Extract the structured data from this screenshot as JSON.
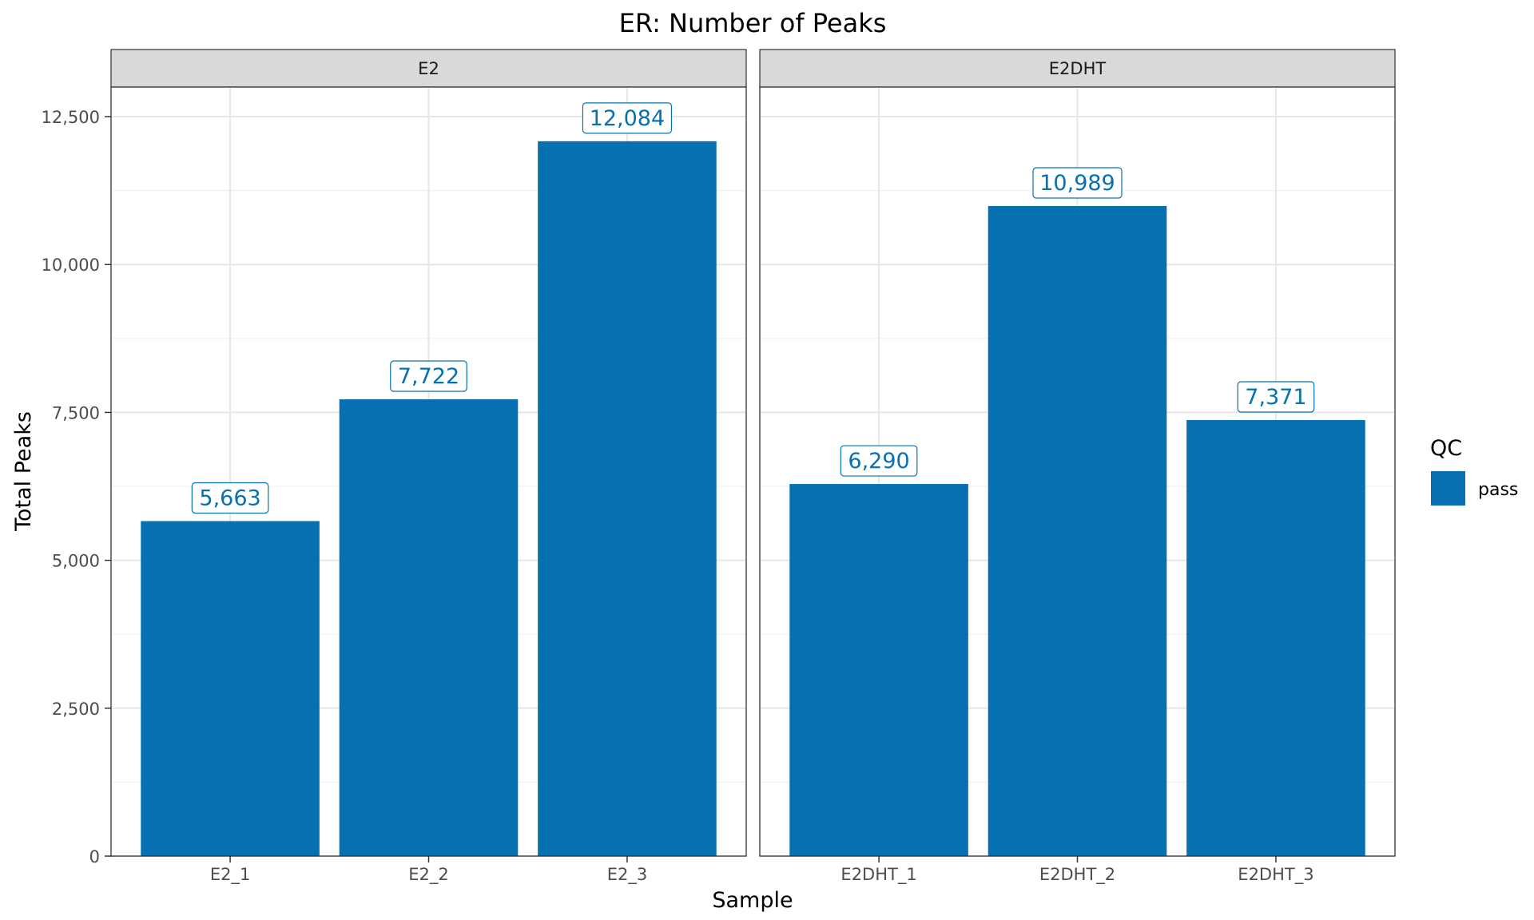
{
  "chart_data": {
    "type": "bar",
    "title": "ER: Number of Peaks",
    "xlabel": "Sample",
    "ylabel": "Total Peaks",
    "ylim": [
      0,
      13000
    ],
    "yticks": [
      0,
      2500,
      5000,
      7500,
      10000,
      12500
    ],
    "ytick_labels": [
      "0",
      "2,500",
      "5,000",
      "7,500",
      "10,000",
      "12,500"
    ],
    "grid": true,
    "bar_color": "#0770B0",
    "panels": [
      {
        "name": "E2",
        "categories": [
          "E2_1",
          "E2_2",
          "E2_3"
        ],
        "values": [
          5663,
          7722,
          12084
        ],
        "labels": [
          "5,663",
          "7,722",
          "12,084"
        ]
      },
      {
        "name": "E2DHT",
        "categories": [
          "E2DHT_1",
          "E2DHT_2",
          "E2DHT_3"
        ],
        "values": [
          6290,
          10989,
          7371
        ],
        "labels": [
          "6,290",
          "10,989",
          "7,371"
        ]
      }
    ],
    "legend": {
      "title": "QC",
      "placement": "right",
      "items": [
        {
          "label": "pass",
          "color": "#0770B0"
        }
      ]
    }
  }
}
